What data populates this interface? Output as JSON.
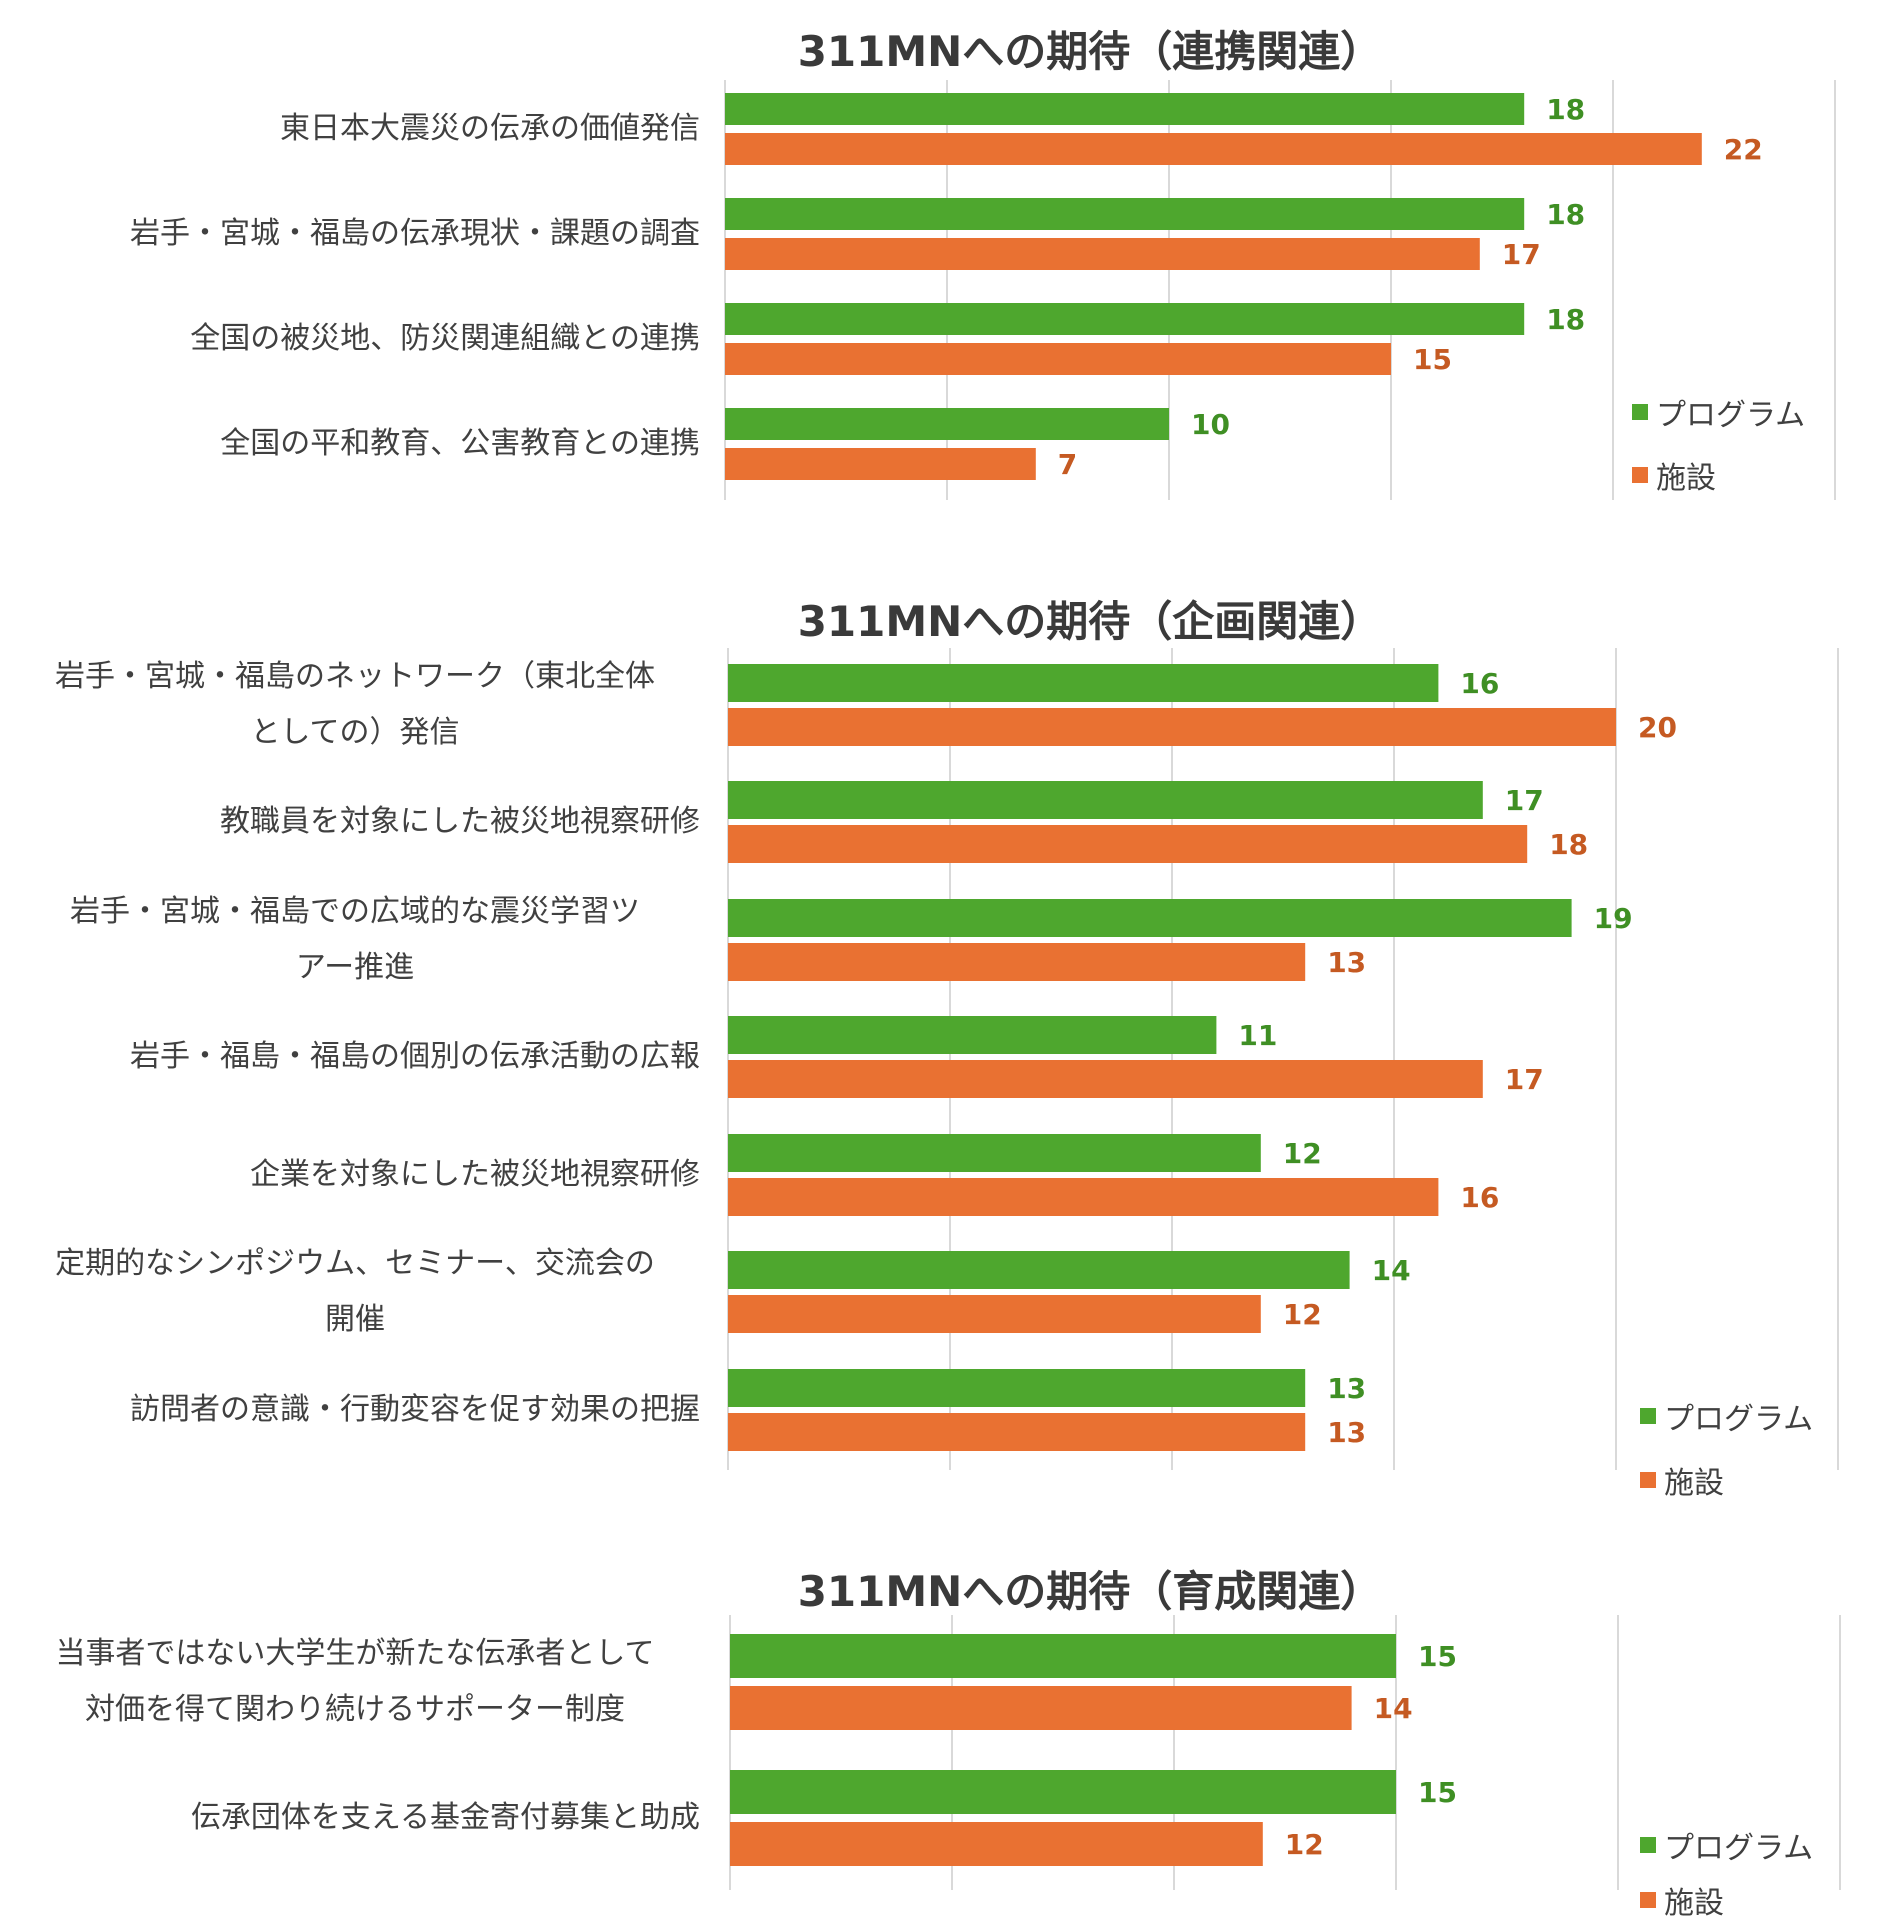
{
  "colors": {
    "program": "#4ea72e",
    "facility": "#e97132",
    "program_label": "#3f8f24",
    "facility_label": "#c55a22",
    "grid": "#d9d9d9"
  },
  "chart_data": [
    {
      "type": "bar",
      "orientation": "horizontal",
      "title": "311MNへの期待（連携関連）",
      "categories": [
        [
          "東日本大震災の伝承の価値発信"
        ],
        [
          "岩手・宮城・福島の伝承現状・課題の調査"
        ],
        [
          "全国の被災地、防災関連組織との連携"
        ],
        [
          "全国の平和教育、公害教育との連携"
        ]
      ],
      "series": [
        {
          "name": "プログラム",
          "values": [
            18,
            18,
            18,
            10
          ]
        },
        {
          "name": "施設",
          "values": [
            22,
            17,
            15,
            7
          ]
        }
      ],
      "xlim": [
        0,
        25
      ],
      "grid": true,
      "legend": "bottom-right"
    },
    {
      "type": "bar",
      "orientation": "horizontal",
      "title": "311MNへの期待（企画関連）",
      "categories": [
        [
          "岩手・宮城・福島のネットワーク（東北全体",
          "としての）発信"
        ],
        [
          "教職員を対象にした被災地視察研修"
        ],
        [
          "岩手・宮城・福島での広域的な震災学習ツ",
          "アー推進"
        ],
        [
          "岩手・福島・福島の個別の伝承活動の広報"
        ],
        [
          "企業を対象にした被災地視察研修"
        ],
        [
          "定期的なシンポジウム、セミナー、交流会の",
          "開催"
        ],
        [
          "訪問者の意識・行動変容を促す効果の把握"
        ]
      ],
      "series": [
        {
          "name": "プログラム",
          "values": [
            16,
            17,
            19,
            11,
            12,
            14,
            13
          ]
        },
        {
          "name": "施設",
          "values": [
            20,
            18,
            13,
            17,
            16,
            12,
            13
          ]
        }
      ],
      "xlim": [
        0,
        25
      ],
      "grid": true,
      "legend": "bottom-right"
    },
    {
      "type": "bar",
      "orientation": "horizontal",
      "title": "311MNへの期待（育成関連）",
      "categories": [
        [
          "当事者ではない大学生が新たな伝承者として",
          "対価を得て関わり続けるサポーター制度"
        ],
        [
          "伝承団体を支える基金寄付募集と助成"
        ]
      ],
      "series": [
        {
          "name": "プログラム",
          "values": [
            15,
            15
          ]
        },
        {
          "name": "施設",
          "values": [
            14,
            12
          ]
        }
      ],
      "xlim": [
        0,
        25
      ],
      "grid": true,
      "legend": "bottom-right"
    }
  ]
}
